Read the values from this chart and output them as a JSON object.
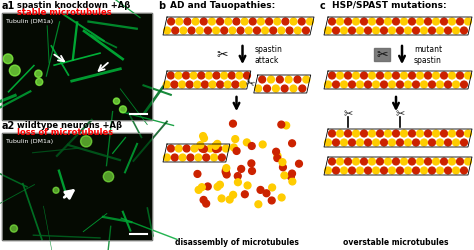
{
  "panel_a1_title1": "spastin knockdown +Aβ",
  "panel_a1_title2": "stable microtubules",
  "panel_a2_title1": "wildtype neurons +Aβ",
  "panel_a2_title2": "loss of microtubules",
  "panel_b_title": "AD and Tauopathies:",
  "panel_c_title": "HSP/SPAST mutations:",
  "label_b": "b",
  "label_c": "c",
  "label_a1": "a1",
  "label_a2": "a2",
  "spastin_attack": "spastin\nattack",
  "mutant_spastin": "mutant\nspastin",
  "disassembly_label": "disassembly of microtubules",
  "overstable_label": "overstable microtubules",
  "tubulin_label": "Tubulin (DM1a)",
  "mt_color_red": "#cc2200",
  "mt_color_yellow": "#ffcc00",
  "bg_color": "#000000",
  "neuron_green": "#00cc44",
  "title2_color": "#ff0000",
  "text_color": "#000000",
  "scissors_color": "#222222"
}
